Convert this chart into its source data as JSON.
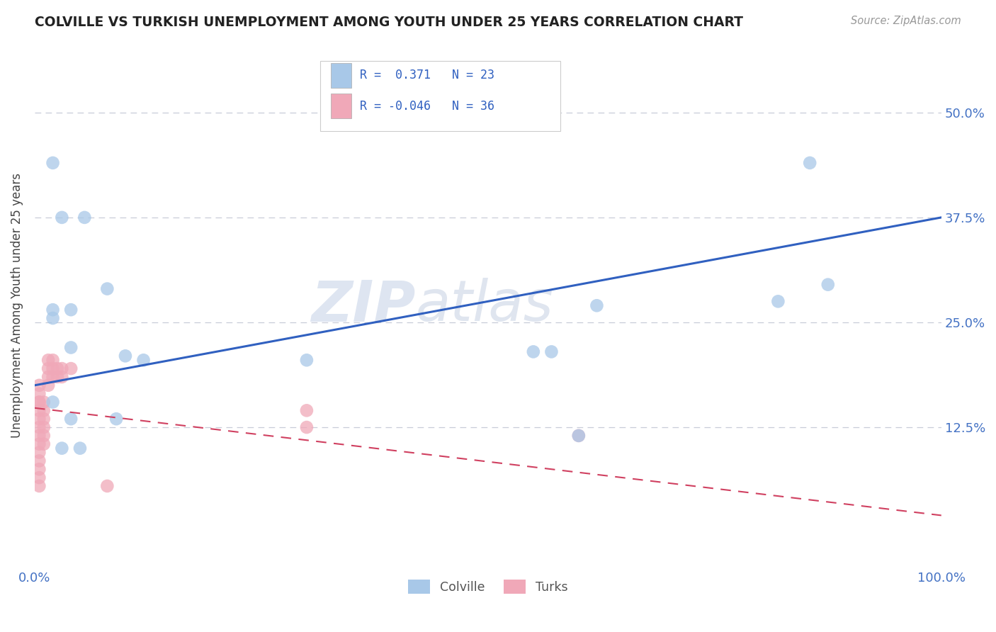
{
  "title": "COLVILLE VS TURKISH UNEMPLOYMENT AMONG YOUTH UNDER 25 YEARS CORRELATION CHART",
  "source": "Source: ZipAtlas.com",
  "ylabel_label": "Unemployment Among Youth under 25 years",
  "colville_R": "0.371",
  "colville_N": "23",
  "turks_R": "-0.046",
  "turks_N": "36",
  "watermark_zip": "ZIP",
  "watermark_atlas": "atlas",
  "colville_color": "#a8c8e8",
  "turks_color": "#f0a8b8",
  "colville_line_color": "#3060c0",
  "turks_line_color": "#d04060",
  "colville_scatter": [
    [
      0.02,
      0.44
    ],
    [
      0.03,
      0.375
    ],
    [
      0.055,
      0.375
    ],
    [
      0.02,
      0.265
    ],
    [
      0.04,
      0.265
    ],
    [
      0.02,
      0.255
    ],
    [
      0.04,
      0.22
    ],
    [
      0.08,
      0.29
    ],
    [
      0.1,
      0.21
    ],
    [
      0.12,
      0.205
    ],
    [
      0.3,
      0.205
    ],
    [
      0.55,
      0.215
    ],
    [
      0.57,
      0.215
    ],
    [
      0.62,
      0.27
    ],
    [
      0.82,
      0.275
    ],
    [
      0.855,
      0.44
    ],
    [
      0.875,
      0.295
    ],
    [
      0.04,
      0.135
    ],
    [
      0.09,
      0.135
    ],
    [
      0.03,
      0.1
    ],
    [
      0.05,
      0.1
    ],
    [
      0.02,
      0.155
    ],
    [
      0.6,
      0.115
    ]
  ],
  "turks_scatter": [
    [
      0.005,
      0.155
    ],
    [
      0.005,
      0.165
    ],
    [
      0.005,
      0.175
    ],
    [
      0.005,
      0.155
    ],
    [
      0.005,
      0.145
    ],
    [
      0.005,
      0.135
    ],
    [
      0.005,
      0.125
    ],
    [
      0.005,
      0.115
    ],
    [
      0.005,
      0.105
    ],
    [
      0.005,
      0.095
    ],
    [
      0.005,
      0.085
    ],
    [
      0.005,
      0.075
    ],
    [
      0.005,
      0.065
    ],
    [
      0.005,
      0.055
    ],
    [
      0.01,
      0.155
    ],
    [
      0.01,
      0.145
    ],
    [
      0.01,
      0.135
    ],
    [
      0.01,
      0.125
    ],
    [
      0.01,
      0.115
    ],
    [
      0.01,
      0.105
    ],
    [
      0.015,
      0.205
    ],
    [
      0.015,
      0.195
    ],
    [
      0.015,
      0.185
    ],
    [
      0.015,
      0.175
    ],
    [
      0.02,
      0.205
    ],
    [
      0.02,
      0.195
    ],
    [
      0.02,
      0.185
    ],
    [
      0.025,
      0.195
    ],
    [
      0.025,
      0.185
    ],
    [
      0.03,
      0.195
    ],
    [
      0.03,
      0.185
    ],
    [
      0.04,
      0.195
    ],
    [
      0.3,
      0.125
    ],
    [
      0.3,
      0.145
    ],
    [
      0.08,
      0.055
    ],
    [
      0.6,
      0.115
    ]
  ],
  "xlim": [
    0.0,
    1.0
  ],
  "ylim": [
    -0.04,
    0.58
  ],
  "colville_trend_x": [
    0.0,
    1.0
  ],
  "colville_trend_y": [
    0.175,
    0.375
  ],
  "turks_trend_x": [
    0.0,
    1.0
  ],
  "turks_trend_y": [
    0.148,
    0.02
  ],
  "ytick_vals": [
    0.125,
    0.25,
    0.375,
    0.5
  ],
  "ytick_labels": [
    "12.5%",
    "25.0%",
    "37.5%",
    "50.0%"
  ],
  "xtick_vals": [
    0.0,
    1.0
  ],
  "xtick_labels": [
    "0.0%",
    "100.0%"
  ]
}
